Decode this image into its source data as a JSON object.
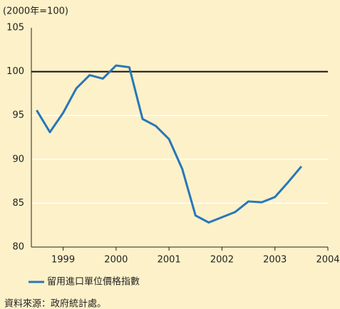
{
  "chart_data": {
    "type": "line",
    "y_label": "(2000年=100)",
    "x": [
      1998.5,
      1998.75,
      1999,
      1999.25,
      1999.5,
      1999.75,
      2000,
      2000.25,
      2000.5,
      2000.75,
      2001,
      2001.25,
      2001.5,
      2001.75,
      2002,
      2002.25,
      2002.5,
      2002.75,
      2003,
      2003.25,
      2003.5
    ],
    "series": [
      {
        "name": "留用進口單位價格指數",
        "color": "#2777b8",
        "values": [
          95.6,
          93.1,
          95.3,
          98.1,
          99.6,
          99.2,
          100.7,
          100.5,
          94.6,
          93.8,
          92.3,
          88.9,
          83.6,
          82.8,
          83.4,
          84.0,
          85.2,
          85.1,
          85.7,
          87.4,
          89.2
        ]
      }
    ],
    "xlim": [
      1998.4,
      2004.0
    ],
    "xticks": [
      1999,
      2000,
      2001,
      2002,
      2003,
      2004
    ],
    "ylim": [
      80,
      105
    ],
    "yticks": [
      80,
      85,
      90,
      95,
      100,
      105
    ],
    "reference_line": 100,
    "grid": true,
    "source": "資料來源：政府統計處。"
  }
}
